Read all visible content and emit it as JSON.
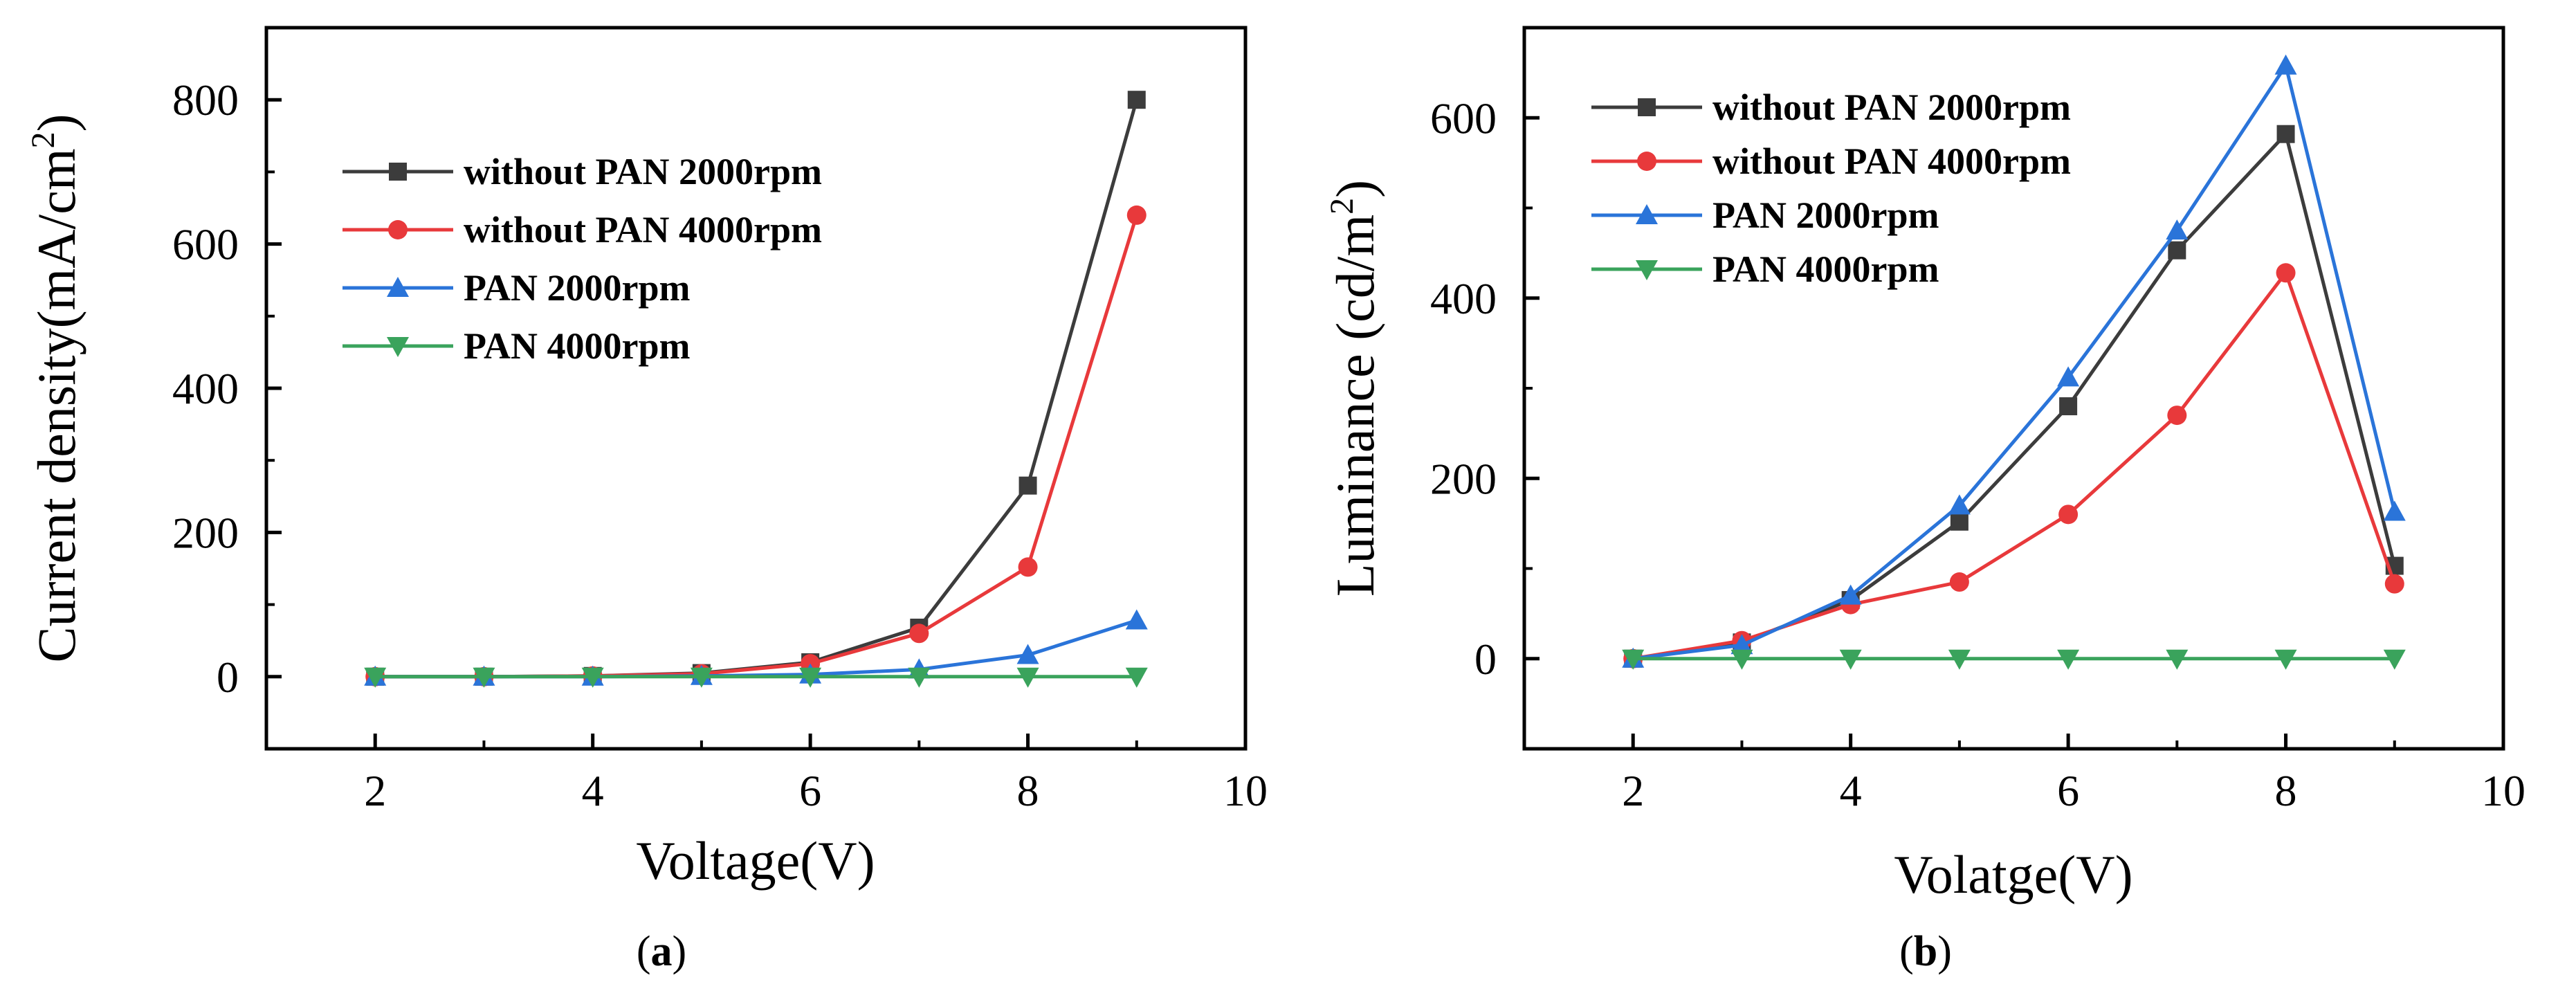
{
  "chart_data": [
    {
      "type": "line",
      "panel_label": "a",
      "xlabel": "Voltage(V)",
      "ylabel_main": "Current density(mA/cm",
      "ylabel_sup": "2",
      "ylabel_close": ")",
      "xlim": [
        1,
        10
      ],
      "ylim": [
        -100,
        900
      ],
      "xticks": [
        2,
        4,
        6,
        8,
        10
      ],
      "yticks": [
        0,
        200,
        400,
        600,
        800
      ],
      "legend_position": "upper-left",
      "x": [
        2,
        3,
        4,
        5,
        6,
        7,
        8,
        9
      ],
      "series": [
        {
          "name": "without PAN 2000rpm",
          "color": "#3c3c3c",
          "marker": "square",
          "values": [
            0,
            0,
            1,
            5,
            20,
            68,
            265,
            800
          ]
        },
        {
          "name": "without PAN 4000rpm",
          "color": "#e8393b",
          "marker": "circle",
          "values": [
            0,
            0,
            1,
            4,
            18,
            60,
            152,
            640
          ]
        },
        {
          "name": "PAN 2000rpm",
          "color": "#2a74d9",
          "marker": "triangle-up",
          "values": [
            0,
            0,
            0,
            1,
            3,
            10,
            30,
            78
          ]
        },
        {
          "name": "PAN 4000rpm",
          "color": "#3aa35c",
          "marker": "triangle-down",
          "values": [
            0,
            0,
            0,
            0,
            0,
            0,
            0,
            0
          ]
        }
      ]
    },
    {
      "type": "line",
      "panel_label": "b",
      "xlabel": "Volatge(V)",
      "ylabel_main": "Luminance (cd/m",
      "ylabel_sup": "2",
      "ylabel_close": ")",
      "xlim": [
        1,
        10
      ],
      "ylim": [
        -100,
        700
      ],
      "xticks": [
        2,
        4,
        6,
        8,
        10
      ],
      "yticks": [
        0,
        200,
        400,
        600
      ],
      "legend_position": "upper-left",
      "x": [
        2,
        3,
        4,
        5,
        6,
        7,
        8,
        9
      ],
      "series": [
        {
          "name": "without PAN 2000rpm",
          "color": "#3c3c3c",
          "marker": "square",
          "values": [
            0,
            18,
            65,
            152,
            280,
            453,
            582,
            103
          ]
        },
        {
          "name": "without PAN 4000rpm",
          "color": "#e8393b",
          "marker": "circle",
          "values": [
            0,
            20,
            60,
            85,
            160,
            270,
            428,
            83
          ]
        },
        {
          "name": "PAN 2000rpm",
          "color": "#2a74d9",
          "marker": "triangle-up",
          "values": [
            0,
            15,
            70,
            170,
            312,
            475,
            658,
            163
          ]
        },
        {
          "name": "PAN 4000rpm",
          "color": "#3aa35c",
          "marker": "triangle-down",
          "values": [
            0,
            0,
            0,
            0,
            0,
            0,
            0,
            0
          ]
        }
      ]
    }
  ]
}
